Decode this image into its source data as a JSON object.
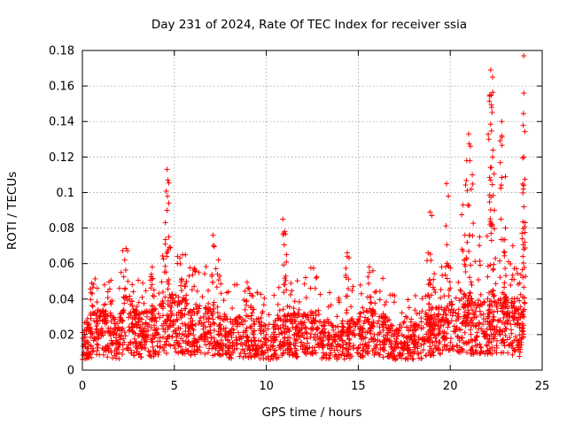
{
  "chart_data": {
    "type": "scatter",
    "title": "Day 231 of 2024, Rate Of TEC Index for receiver ssia",
    "xlabel": "GPS time / hours",
    "ylabel": "ROTI / TECUs",
    "xlim": [
      0,
      25
    ],
    "ylim": [
      0,
      0.18
    ],
    "xticks": [
      0,
      5,
      10,
      15,
      20,
      25
    ],
    "xtick_labels": [
      "0",
      "5",
      "10",
      "15",
      "20",
      "25"
    ],
    "yticks": [
      0,
      0.02,
      0.04,
      0.06,
      0.08,
      0.1,
      0.12,
      0.14,
      0.16,
      0.18
    ],
    "ytick_labels": [
      "0",
      "0.02",
      "0.04",
      "0.06",
      "0.08",
      "0.1",
      "0.12",
      "0.14",
      "0.16",
      "0.18"
    ],
    "grid": true,
    "marker": "+",
    "color": "#ff0000",
    "series": [
      {
        "name": "ROTI",
        "baseline_profile": [
          [
            0.0,
            0.016
          ],
          [
            0.5,
            0.02
          ],
          [
            1.0,
            0.022
          ],
          [
            2.0,
            0.018
          ],
          [
            2.3,
            0.03
          ],
          [
            3.0,
            0.02
          ],
          [
            4.0,
            0.022
          ],
          [
            4.5,
            0.026
          ],
          [
            5.0,
            0.028
          ],
          [
            6.0,
            0.022
          ],
          [
            7.0,
            0.024
          ],
          [
            8.0,
            0.018
          ],
          [
            9.0,
            0.02
          ],
          [
            10.0,
            0.016
          ],
          [
            11.0,
            0.02
          ],
          [
            12.0,
            0.02
          ],
          [
            12.5,
            0.024
          ],
          [
            13.0,
            0.018
          ],
          [
            14.0,
            0.016
          ],
          [
            15.0,
            0.02
          ],
          [
            16.0,
            0.022
          ],
          [
            17.0,
            0.016
          ],
          [
            18.0,
            0.016
          ],
          [
            19.0,
            0.022
          ],
          [
            20.0,
            0.024
          ],
          [
            21.0,
            0.026
          ],
          [
            22.0,
            0.024
          ],
          [
            23.0,
            0.026
          ],
          [
            24.0,
            0.02
          ]
        ],
        "peaks": [
          {
            "x": 0.5,
            "y": 0.049
          },
          {
            "x": 1.2,
            "y": 0.048
          },
          {
            "x": 2.3,
            "y": 0.062
          },
          {
            "x": 3.8,
            "y": 0.058
          },
          {
            "x": 4.6,
            "y": 0.113
          },
          {
            "x": 4.65,
            "y": 0.107
          },
          {
            "x": 4.6,
            "y": 0.09
          },
          {
            "x": 4.7,
            "y": 0.075
          },
          {
            "x": 5.3,
            "y": 0.063
          },
          {
            "x": 5.6,
            "y": 0.065
          },
          {
            "x": 7.1,
            "y": 0.076
          },
          {
            "x": 7.4,
            "y": 0.062
          },
          {
            "x": 9.2,
            "y": 0.042
          },
          {
            "x": 10.9,
            "y": 0.085
          },
          {
            "x": 11.0,
            "y": 0.078
          },
          {
            "x": 11.1,
            "y": 0.065
          },
          {
            "x": 14.4,
            "y": 0.066
          },
          {
            "x": 14.4,
            "y": 0.064
          },
          {
            "x": 15.6,
            "y": 0.058
          },
          {
            "x": 15.8,
            "y": 0.056
          },
          {
            "x": 18.8,
            "y": 0.066
          },
          {
            "x": 18.9,
            "y": 0.089
          },
          {
            "x": 19.0,
            "y": 0.087
          },
          {
            "x": 19.8,
            "y": 0.105
          },
          {
            "x": 19.9,
            "y": 0.098
          },
          {
            "x": 20.7,
            "y": 0.093
          },
          {
            "x": 20.8,
            "y": 0.076
          },
          {
            "x": 21.0,
            "y": 0.133
          },
          {
            "x": 21.1,
            "y": 0.126
          },
          {
            "x": 20.9,
            "y": 0.118
          },
          {
            "x": 21.2,
            "y": 0.11
          },
          {
            "x": 21.6,
            "y": 0.075
          },
          {
            "x": 22.2,
            "y": 0.169
          },
          {
            "x": 22.3,
            "y": 0.165
          },
          {
            "x": 22.15,
            "y": 0.155
          },
          {
            "x": 22.25,
            "y": 0.148
          },
          {
            "x": 22.1,
            "y": 0.13
          },
          {
            "x": 22.3,
            "y": 0.12
          },
          {
            "x": 22.2,
            "y": 0.107
          },
          {
            "x": 22.4,
            "y": 0.09
          },
          {
            "x": 22.8,
            "y": 0.14
          },
          {
            "x": 22.8,
            "y": 0.132
          },
          {
            "x": 23.0,
            "y": 0.109
          },
          {
            "x": 23.0,
            "y": 0.08
          },
          {
            "x": 23.4,
            "y": 0.07
          },
          {
            "x": 24.0,
            "y": 0.177
          },
          {
            "x": 24.0,
            "y": 0.156
          },
          {
            "x": 24.0,
            "y": 0.12
          },
          {
            "x": 24.0,
            "y": 0.104
          },
          {
            "x": 24.0,
            "y": 0.092
          },
          {
            "x": 23.9,
            "y": 0.077
          },
          {
            "x": 24.0,
            "y": 0.068
          }
        ]
      }
    ]
  }
}
